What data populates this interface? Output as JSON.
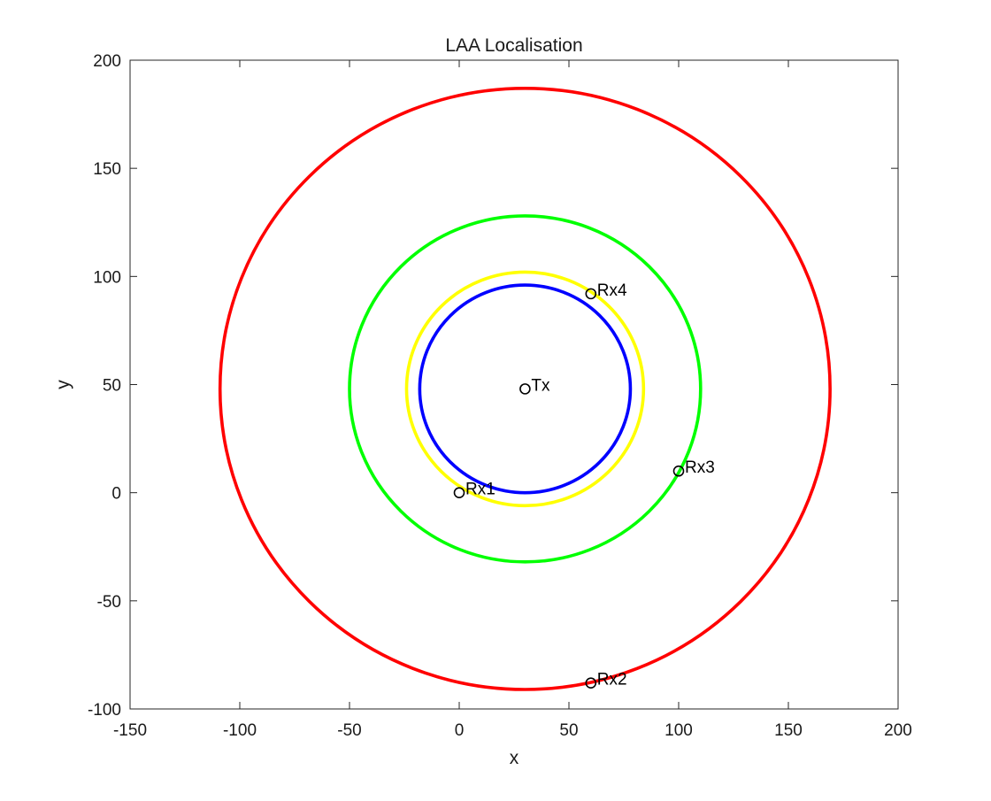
{
  "chart_data": {
    "type": "scatter",
    "title": "LAA Localisation",
    "xlabel": "x",
    "ylabel": "y",
    "xlim": [
      -150,
      200
    ],
    "ylim": [
      -100,
      200
    ],
    "xticks": [
      -150,
      -100,
      -50,
      0,
      50,
      100,
      150,
      200
    ],
    "yticks": [
      -100,
      -50,
      0,
      50,
      100,
      150,
      200
    ],
    "grid": false,
    "legend": false,
    "circles": [
      {
        "cx": 30,
        "cy": 48,
        "r": 139,
        "color": "#ff0000"
      },
      {
        "cx": 30,
        "cy": 48,
        "r": 80,
        "color": "#00ff00"
      },
      {
        "cx": 30,
        "cy": 48,
        "r": 54,
        "color": "#ffff00"
      },
      {
        "cx": 30,
        "cy": 48,
        "r": 48,
        "color": "#0000ff"
      }
    ],
    "points": [
      {
        "label": "Tx",
        "x": 30,
        "y": 48
      },
      {
        "label": "Rx1",
        "x": 0,
        "y": 0
      },
      {
        "label": "Rx2",
        "x": 60,
        "y": -88
      },
      {
        "label": "Rx3",
        "x": 100,
        "y": 10
      },
      {
        "label": "Rx4",
        "x": 60,
        "y": 92
      }
    ]
  }
}
